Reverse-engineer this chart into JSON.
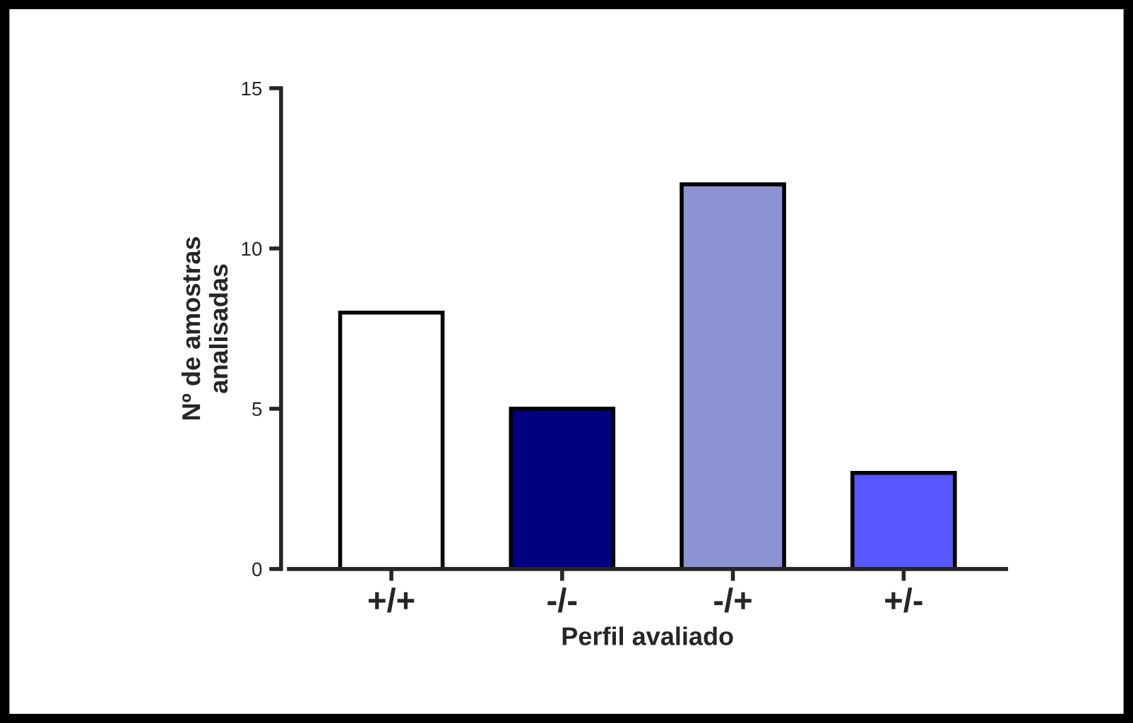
{
  "chart_data": {
    "type": "bar",
    "categories": [
      "+/+",
      "-/-",
      "-/+",
      "+/-"
    ],
    "values": [
      8,
      5,
      12,
      3
    ],
    "colors": [
      "#ffffff",
      "#000080",
      "#8b93d2",
      "#5757ff"
    ],
    "xlabel": "Perfil avaliado",
    "ylabel": "Nº de amostras\nanalisadas",
    "ylim": [
      0,
      15
    ],
    "yticks": [
      0,
      5,
      10,
      15
    ],
    "grid": false,
    "legend": false
  }
}
